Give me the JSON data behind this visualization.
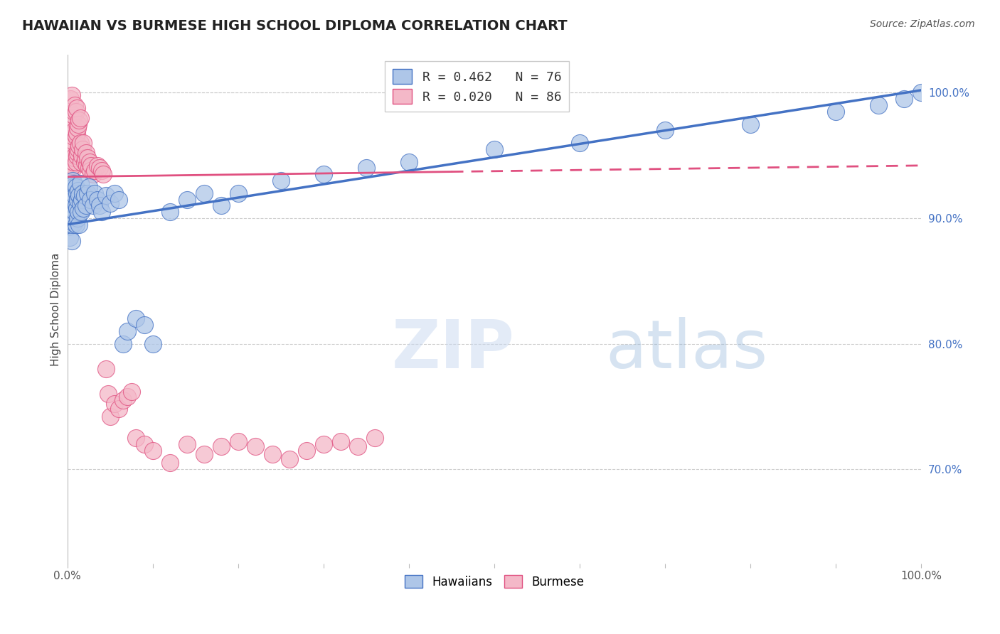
{
  "title": "HAWAIIAN VS BURMESE HIGH SCHOOL DIPLOMA CORRELATION CHART",
  "source": "Source: ZipAtlas.com",
  "ylabel": "High School Diploma",
  "xlim": [
    0.0,
    1.0
  ],
  "ylim": [
    0.625,
    1.03
  ],
  "ytick_positions": [
    0.7,
    0.8,
    0.9,
    1.0
  ],
  "hawaiian_color": "#aec6e8",
  "burmese_color": "#f4b8c8",
  "hawaiian_line_color": "#4472c4",
  "burmese_line_color": "#e05080",
  "watermark_color": "#ccdcf0",
  "legend_r_color": "#4472c4",
  "hawaiian_x": [
    0.001,
    0.002,
    0.002,
    0.003,
    0.003,
    0.003,
    0.004,
    0.004,
    0.004,
    0.005,
    0.005,
    0.005,
    0.006,
    0.006,
    0.006,
    0.007,
    0.007,
    0.007,
    0.008,
    0.008,
    0.008,
    0.009,
    0.009,
    0.01,
    0.01,
    0.01,
    0.011,
    0.011,
    0.012,
    0.012,
    0.013,
    0.013,
    0.014,
    0.014,
    0.015,
    0.015,
    0.016,
    0.017,
    0.018,
    0.019,
    0.02,
    0.022,
    0.024,
    0.025,
    0.027,
    0.03,
    0.032,
    0.035,
    0.038,
    0.04,
    0.045,
    0.05,
    0.055,
    0.06,
    0.065,
    0.07,
    0.08,
    0.09,
    0.1,
    0.12,
    0.14,
    0.16,
    0.18,
    0.2,
    0.25,
    0.3,
    0.35,
    0.4,
    0.5,
    0.6,
    0.7,
    0.8,
    0.9,
    0.95,
    0.98,
    1.0
  ],
  "hawaiian_y": [
    0.906,
    0.915,
    0.893,
    0.922,
    0.905,
    0.885,
    0.912,
    0.895,
    0.925,
    0.9,
    0.918,
    0.882,
    0.908,
    0.93,
    0.895,
    0.915,
    0.9,
    0.925,
    0.91,
    0.896,
    0.928,
    0.905,
    0.918,
    0.925,
    0.91,
    0.895,
    0.92,
    0.908,
    0.915,
    0.9,
    0.922,
    0.905,
    0.918,
    0.895,
    0.912,
    0.928,
    0.905,
    0.915,
    0.92,
    0.908,
    0.918,
    0.91,
    0.92,
    0.925,
    0.915,
    0.91,
    0.92,
    0.915,
    0.91,
    0.905,
    0.918,
    0.912,
    0.92,
    0.915,
    0.8,
    0.81,
    0.82,
    0.815,
    0.8,
    0.905,
    0.915,
    0.92,
    0.91,
    0.92,
    0.93,
    0.935,
    0.94,
    0.945,
    0.955,
    0.96,
    0.97,
    0.975,
    0.985,
    0.99,
    0.995,
    1.0
  ],
  "burmese_x": [
    0.001,
    0.001,
    0.002,
    0.002,
    0.002,
    0.003,
    0.003,
    0.003,
    0.003,
    0.004,
    0.004,
    0.004,
    0.004,
    0.005,
    0.005,
    0.005,
    0.005,
    0.006,
    0.006,
    0.006,
    0.007,
    0.007,
    0.007,
    0.008,
    0.008,
    0.008,
    0.009,
    0.009,
    0.009,
    0.01,
    0.01,
    0.01,
    0.011,
    0.011,
    0.011,
    0.012,
    0.012,
    0.013,
    0.013,
    0.014,
    0.014,
    0.015,
    0.015,
    0.016,
    0.017,
    0.018,
    0.019,
    0.02,
    0.021,
    0.022,
    0.023,
    0.024,
    0.025,
    0.026,
    0.027,
    0.028,
    0.03,
    0.032,
    0.035,
    0.038,
    0.04,
    0.042,
    0.045,
    0.048,
    0.05,
    0.055,
    0.06,
    0.065,
    0.07,
    0.075,
    0.08,
    0.09,
    0.1,
    0.12,
    0.14,
    0.16,
    0.18,
    0.2,
    0.22,
    0.24,
    0.26,
    0.28,
    0.3,
    0.32,
    0.34,
    0.36
  ],
  "burmese_y": [
    0.94,
    0.96,
    0.945,
    0.965,
    0.975,
    0.935,
    0.955,
    0.97,
    0.985,
    0.94,
    0.96,
    0.975,
    0.995,
    0.938,
    0.958,
    0.978,
    0.998,
    0.942,
    0.962,
    0.98,
    0.945,
    0.965,
    0.982,
    0.948,
    0.968,
    0.985,
    0.95,
    0.97,
    0.99,
    0.945,
    0.965,
    0.985,
    0.95,
    0.968,
    0.988,
    0.952,
    0.972,
    0.955,
    0.975,
    0.958,
    0.978,
    0.96,
    0.98,
    0.945,
    0.95,
    0.955,
    0.96,
    0.945,
    0.948,
    0.952,
    0.942,
    0.948,
    0.94,
    0.945,
    0.938,
    0.942,
    0.935,
    0.938,
    0.942,
    0.94,
    0.938,
    0.935,
    0.78,
    0.76,
    0.742,
    0.752,
    0.748,
    0.755,
    0.758,
    0.762,
    0.725,
    0.72,
    0.715,
    0.705,
    0.72,
    0.712,
    0.718,
    0.722,
    0.718,
    0.712,
    0.708,
    0.715,
    0.72,
    0.722,
    0.718,
    0.725
  ]
}
